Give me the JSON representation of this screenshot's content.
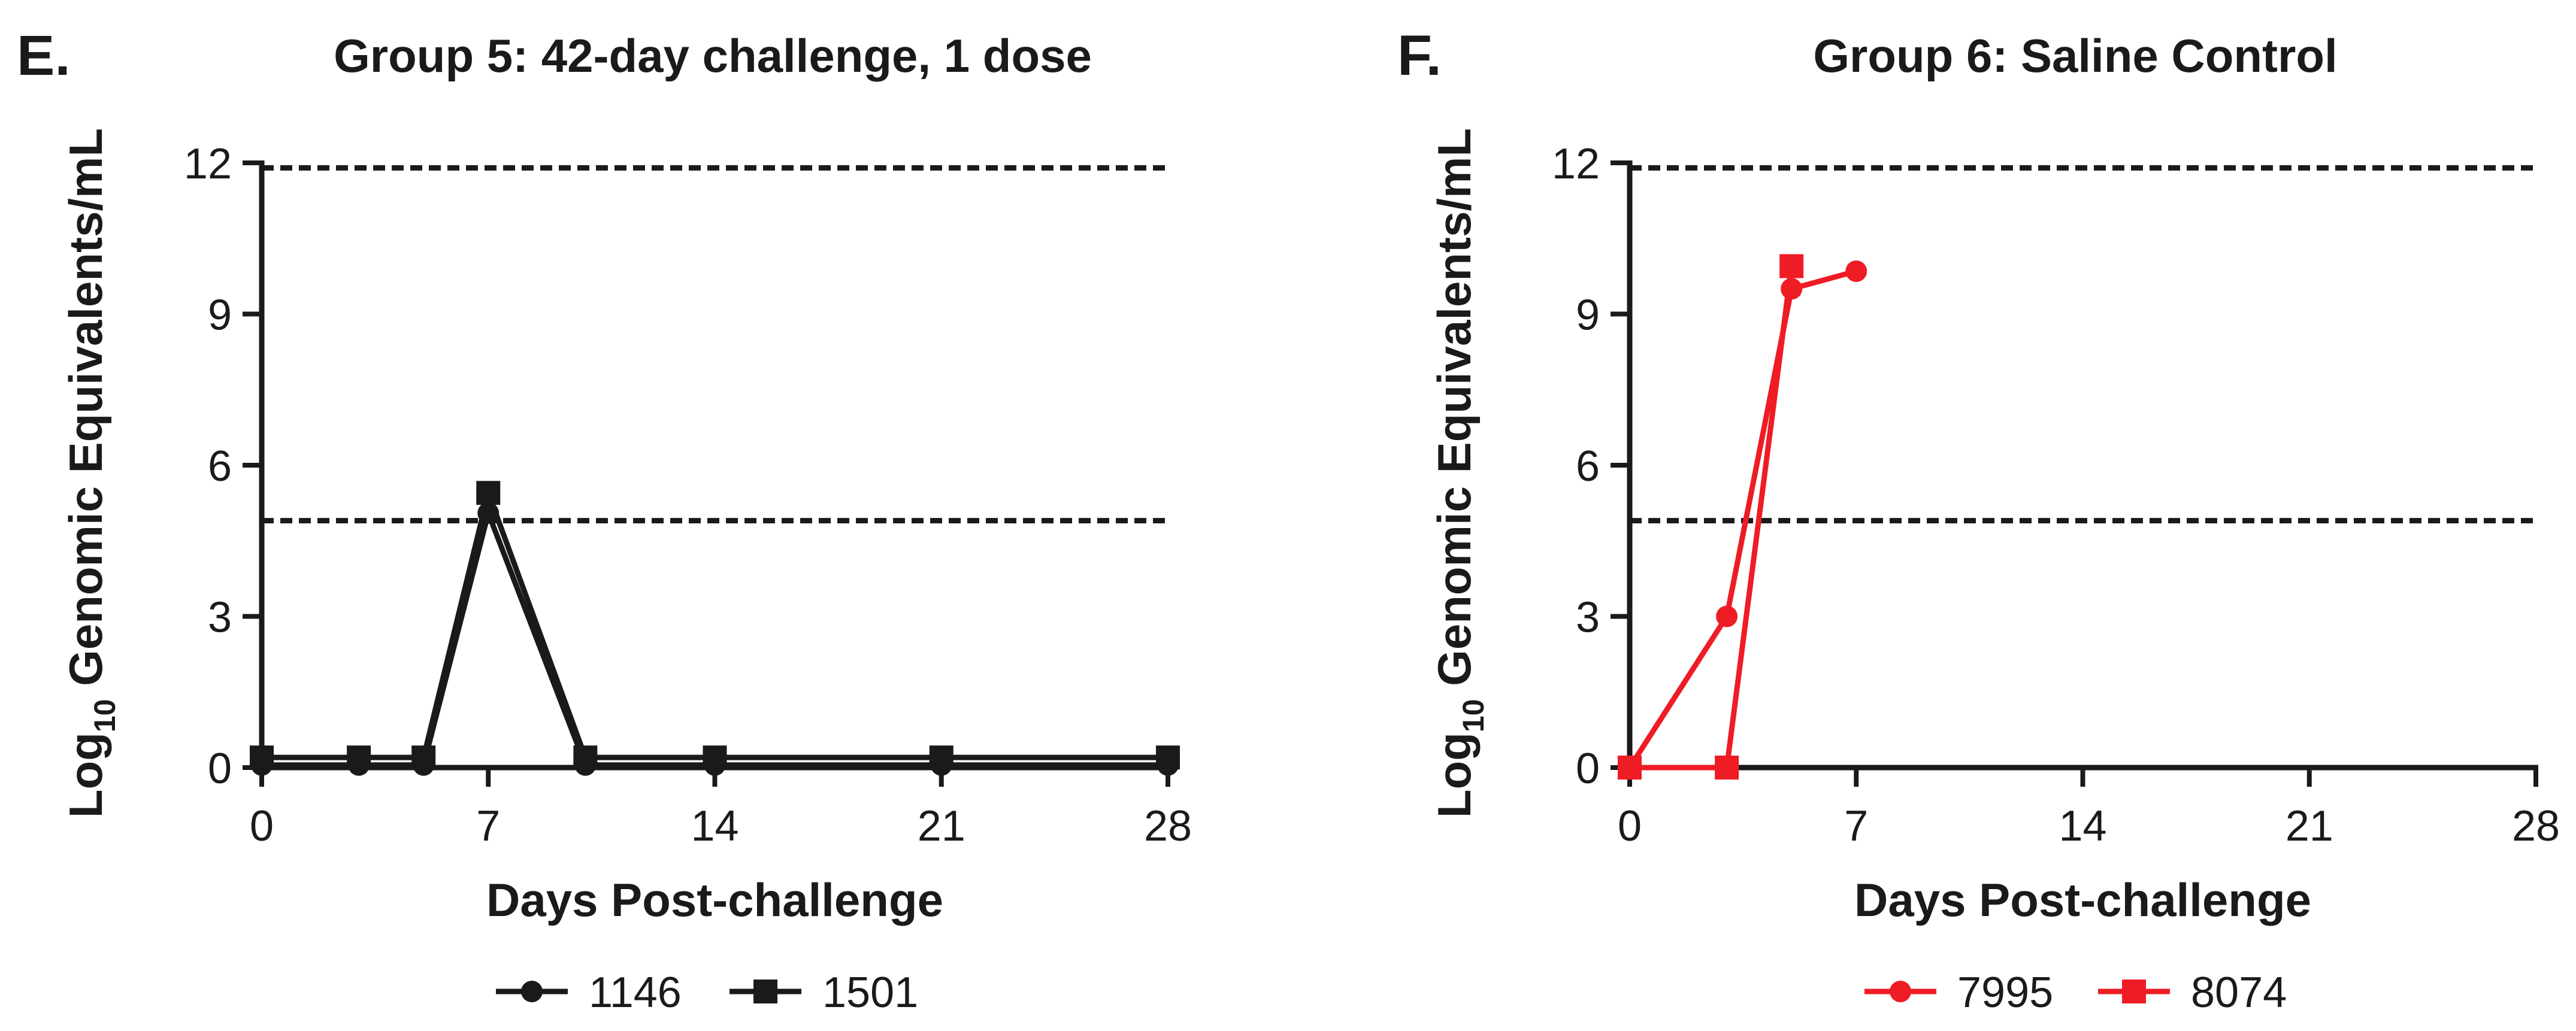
{
  "chart_data": [
    {
      "type": "line",
      "panel_label": "E.",
      "title": "Group 5: 42-day challenge, 1 dose",
      "xlabel": "Days Post-challenge",
      "ylabel": {
        "prefix": "Log",
        "subscript": "10",
        "suffix": " Genomic Equivalents/mL"
      },
      "xlim": [
        0,
        28
      ],
      "ylim": [
        0,
        12
      ],
      "xticks": [
        0,
        7,
        14,
        21,
        28
      ],
      "yticks": [
        0,
        3,
        6,
        9,
        12
      ],
      "reference_lines": [
        4.9,
        11.9
      ],
      "series": [
        {
          "name": "1146",
          "marker": "circle",
          "color": "#1a1a1a",
          "x": [
            0,
            3,
            5,
            7,
            10,
            14,
            21,
            28
          ],
          "y": [
            0.05,
            0.05,
            0.05,
            5.05,
            0.05,
            0.05,
            0.05,
            0.05
          ]
        },
        {
          "name": "1501",
          "marker": "square",
          "color": "#1a1a1a",
          "x": [
            0,
            3,
            5,
            7,
            10,
            14,
            21,
            28
          ],
          "y": [
            0.2,
            0.2,
            0.2,
            5.45,
            0.2,
            0.2,
            0.2,
            0.2
          ]
        }
      ]
    },
    {
      "type": "line",
      "panel_label": "F.",
      "title": "Group 6: Saline Control",
      "xlabel": "Days Post-challenge",
      "ylabel": {
        "prefix": "Log",
        "subscript": "10",
        "suffix": " Genomic Equivalents/mL"
      },
      "xlim": [
        0,
        28
      ],
      "ylim": [
        0,
        12
      ],
      "xticks": [
        0,
        7,
        14,
        21,
        28
      ],
      "yticks": [
        0,
        3,
        6,
        9,
        12
      ],
      "reference_lines": [
        4.9,
        11.9
      ],
      "series": [
        {
          "name": "7995",
          "marker": "circle",
          "color": "#ee1c25",
          "x": [
            0,
            3,
            5,
            7
          ],
          "y": [
            0,
            3.0,
            9.5,
            9.85
          ]
        },
        {
          "name": "8074",
          "marker": "square",
          "color": "#ee1c25",
          "x": [
            0,
            3,
            5
          ],
          "y": [
            0,
            0,
            9.95
          ]
        }
      ]
    }
  ]
}
